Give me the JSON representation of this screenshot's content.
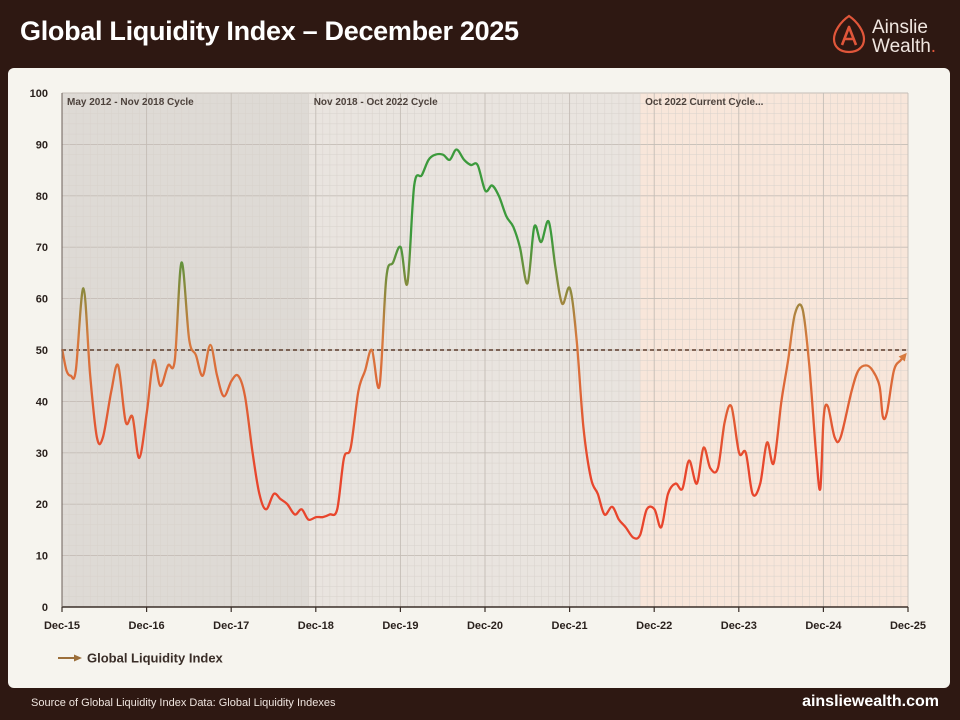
{
  "header": {
    "title": "Global Liquidity Index – December 2025",
    "brand_line1": "Ainslie",
    "brand_line2": "Wealth",
    "brand_dot": "."
  },
  "footer": {
    "source": "Source of Global Liquidity Index Data: Global Liquidity Indexes",
    "site": "ainsliewealth.com"
  },
  "colors": {
    "background": "#2e1812",
    "panel": "#f6f4ee",
    "low": "#e8452c",
    "mid": "#d77a3e",
    "high": "#3c9a3c",
    "reference_line": "#5a3a2a",
    "brand_accent": "#e0563a"
  },
  "chart_data": {
    "type": "line",
    "title": "",
    "xlabel": "",
    "ylabel": "",
    "ylim": [
      0,
      100
    ],
    "yticks": [
      0,
      10,
      20,
      30,
      40,
      50,
      60,
      70,
      80,
      90,
      100
    ],
    "xlim": [
      2015.917,
      2025.917
    ],
    "xticks": [
      {
        "x": 2015.917,
        "label": "Dec-15"
      },
      {
        "x": 2016.917,
        "label": "Dec-16"
      },
      {
        "x": 2017.917,
        "label": "Dec-17"
      },
      {
        "x": 2018.917,
        "label": "Dec-18"
      },
      {
        "x": 2019.917,
        "label": "Dec-19"
      },
      {
        "x": 2020.917,
        "label": "Dec-20"
      },
      {
        "x": 2021.917,
        "label": "Dec-21"
      },
      {
        "x": 2022.917,
        "label": "Dec-22"
      },
      {
        "x": 2023.917,
        "label": "Dec-23"
      },
      {
        "x": 2024.917,
        "label": "Dec-24"
      },
      {
        "x": 2025.917,
        "label": "Dec-25"
      }
    ],
    "grid": true,
    "reference_line": {
      "y": 50,
      "style": "dashed"
    },
    "cycles": [
      {
        "label": "May 2012 - Nov 2018 Cycle",
        "start": 2015.917,
        "end": 2018.833,
        "color": "#dedad5"
      },
      {
        "label": "Nov 2018 - Oct 2022 Cycle",
        "start": 2018.833,
        "end": 2022.75,
        "color": "#e9e4df"
      },
      {
        "label": "Oct 2022 Current Cycle...",
        "start": 2022.75,
        "end": 2025.917,
        "color": "#f8e6da"
      }
    ],
    "legend": {
      "position": "bottom-left",
      "label": "Global Liquidity Index"
    },
    "series": [
      {
        "name": "Global Liquidity Index",
        "points": [
          [
            2015.92,
            50
          ],
          [
            2015.97,
            46
          ],
          [
            2016.02,
            45
          ],
          [
            2016.08,
            46
          ],
          [
            2016.17,
            62
          ],
          [
            2016.25,
            45
          ],
          [
            2016.33,
            33
          ],
          [
            2016.4,
            33
          ],
          [
            2016.5,
            42
          ],
          [
            2016.58,
            47
          ],
          [
            2016.67,
            36
          ],
          [
            2016.75,
            37
          ],
          [
            2016.83,
            29
          ],
          [
            2016.92,
            38
          ],
          [
            2017.0,
            48
          ],
          [
            2017.08,
            43
          ],
          [
            2017.17,
            47
          ],
          [
            2017.25,
            48
          ],
          [
            2017.33,
            67
          ],
          [
            2017.42,
            52
          ],
          [
            2017.5,
            49
          ],
          [
            2017.58,
            45
          ],
          [
            2017.67,
            51
          ],
          [
            2017.75,
            45
          ],
          [
            2017.83,
            41
          ],
          [
            2017.92,
            44
          ],
          [
            2018.0,
            45
          ],
          [
            2018.08,
            41
          ],
          [
            2018.17,
            30
          ],
          [
            2018.25,
            22
          ],
          [
            2018.33,
            19
          ],
          [
            2018.42,
            22
          ],
          [
            2018.5,
            21
          ],
          [
            2018.58,
            20
          ],
          [
            2018.67,
            18
          ],
          [
            2018.75,
            19
          ],
          [
            2018.83,
            17
          ],
          [
            2018.92,
            17.5
          ],
          [
            2019.0,
            17.5
          ],
          [
            2019.08,
            18
          ],
          [
            2019.17,
            19
          ],
          [
            2019.25,
            29
          ],
          [
            2019.33,
            31
          ],
          [
            2019.42,
            42
          ],
          [
            2019.5,
            46
          ],
          [
            2019.58,
            50
          ],
          [
            2019.67,
            43
          ],
          [
            2019.75,
            64
          ],
          [
            2019.83,
            67
          ],
          [
            2019.92,
            70
          ],
          [
            2020.0,
            63
          ],
          [
            2020.08,
            82
          ],
          [
            2020.17,
            84
          ],
          [
            2020.25,
            87
          ],
          [
            2020.33,
            88
          ],
          [
            2020.42,
            88
          ],
          [
            2020.5,
            87
          ],
          [
            2020.58,
            89
          ],
          [
            2020.67,
            87
          ],
          [
            2020.75,
            86
          ],
          [
            2020.83,
            86
          ],
          [
            2020.92,
            81
          ],
          [
            2021.0,
            82
          ],
          [
            2021.08,
            80
          ],
          [
            2021.17,
            76
          ],
          [
            2021.25,
            74
          ],
          [
            2021.33,
            70
          ],
          [
            2021.42,
            63
          ],
          [
            2021.5,
            74
          ],
          [
            2021.58,
            71
          ],
          [
            2021.67,
            75
          ],
          [
            2021.75,
            66
          ],
          [
            2021.83,
            59
          ],
          [
            2021.92,
            62
          ],
          [
            2022.0,
            52
          ],
          [
            2022.08,
            35
          ],
          [
            2022.17,
            25
          ],
          [
            2022.25,
            22
          ],
          [
            2022.33,
            18
          ],
          [
            2022.42,
            19.5
          ],
          [
            2022.5,
            17
          ],
          [
            2022.58,
            15.5
          ],
          [
            2022.67,
            13.5
          ],
          [
            2022.75,
            14
          ],
          [
            2022.83,
            19
          ],
          [
            2022.92,
            19
          ],
          [
            2023.0,
            15.5
          ],
          [
            2023.08,
            22
          ],
          [
            2023.17,
            24
          ],
          [
            2023.25,
            23
          ],
          [
            2023.33,
            28.5
          ],
          [
            2023.42,
            24
          ],
          [
            2023.5,
            31
          ],
          [
            2023.58,
            27
          ],
          [
            2023.67,
            27
          ],
          [
            2023.75,
            36
          ],
          [
            2023.83,
            39
          ],
          [
            2023.92,
            30
          ],
          [
            2024.0,
            30
          ],
          [
            2024.08,
            22
          ],
          [
            2024.17,
            24
          ],
          [
            2024.25,
            32
          ],
          [
            2024.33,
            28
          ],
          [
            2024.42,
            40
          ],
          [
            2024.5,
            48
          ],
          [
            2024.58,
            57
          ],
          [
            2024.67,
            58
          ],
          [
            2024.75,
            47
          ],
          [
            2024.83,
            30
          ],
          [
            2024.88,
            23
          ],
          [
            2024.92,
            37
          ],
          [
            2024.97,
            39
          ],
          [
            2025.05,
            33
          ],
          [
            2025.12,
            33
          ],
          [
            2025.25,
            42
          ],
          [
            2025.33,
            46
          ],
          [
            2025.42,
            47
          ],
          [
            2025.5,
            46
          ],
          [
            2025.58,
            43
          ],
          [
            2025.62,
            37
          ],
          [
            2025.67,
            38
          ],
          [
            2025.75,
            46
          ],
          [
            2025.83,
            48
          ],
          [
            2025.88,
            49
          ]
        ]
      }
    ]
  }
}
